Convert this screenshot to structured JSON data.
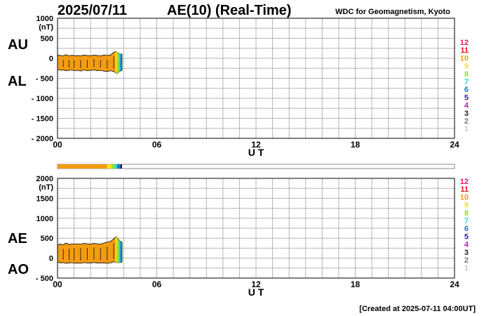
{
  "header": {
    "date": "2025/07/11",
    "title": "AE(10) (Real-Time)",
    "organization": "WDC for Geomagnetism, Kyoto"
  },
  "footer": {
    "created": "[Created at 2025-07-11 04:00UT]"
  },
  "legend": {
    "entries": [
      {
        "label": "12",
        "color": "#e8176d"
      },
      {
        "label": "11",
        "color": "#e3140e"
      },
      {
        "label": "10",
        "color": "#f39c12"
      },
      {
        "label": "9",
        "color": "#f5e51a"
      },
      {
        "label": "8",
        "color": "#98e317"
      },
      {
        "label": "7",
        "color": "#26d9e0"
      },
      {
        "label": "6",
        "color": "#1676d9"
      },
      {
        "label": "5",
        "color": "#3412c9"
      },
      {
        "label": "4",
        "color": "#c515d9"
      },
      {
        "label": "3",
        "color": "#222222"
      },
      {
        "label": "2",
        "color": "#777777"
      },
      {
        "label": "1",
        "color": "#cccccc"
      }
    ]
  },
  "chart_data": [
    {
      "type": "area",
      "name": "AU/AL panel",
      "labels": [
        "AU",
        "AL"
      ],
      "unit": "(nT)",
      "xlabel": "U T",
      "xlim": [
        0,
        24
      ],
      "xticks": [
        "00",
        "06",
        "12",
        "18",
        "24"
      ],
      "ylim": [
        -2000,
        1000
      ],
      "yticks": [
        "1000",
        "500",
        "0",
        "- 500",
        "- 1000",
        "- 1500",
        "- 2000"
      ],
      "ytick_values": [
        1000,
        500,
        0,
        -500,
        -1000,
        -1500,
        -2000
      ],
      "grid": true,
      "x": [
        0.0,
        0.2,
        0.35,
        0.5,
        0.7,
        0.9,
        1.0,
        1.2,
        1.4,
        1.6,
        1.8,
        2.0,
        2.2,
        2.4,
        2.6,
        2.8,
        3.0,
        3.2,
        3.4,
        3.5,
        3.6,
        3.7,
        3.8,
        3.9
      ],
      "series": [
        {
          "values": [
            80,
            70,
            60,
            90,
            60,
            80,
            60,
            70,
            60,
            80,
            70,
            60,
            80,
            70,
            60,
            80,
            70,
            80,
            150,
            170,
            150,
            120,
            100,
            110
          ]
        },
        {
          "values": [
            -280,
            -300,
            -290,
            -310,
            -300,
            -290,
            -310,
            -300,
            -320,
            -290,
            -310,
            -300,
            -290,
            -310,
            -300,
            -320,
            -330,
            -310,
            -330,
            -360,
            -380,
            -340,
            -320,
            -300
          ]
        }
      ]
    },
    {
      "type": "area",
      "name": "AE/AO panel",
      "labels": [
        "AE",
        "AO"
      ],
      "unit": "(nT)",
      "xlabel": "U T",
      "xlim": [
        0,
        24
      ],
      "xticks": [
        "00",
        "06",
        "12",
        "18",
        "24"
      ],
      "ylim": [
        -500,
        2000
      ],
      "yticks": [
        "2000",
        "1500",
        "1000",
        "500",
        "0",
        "- 500"
      ],
      "ytick_values": [
        2000,
        1500,
        1000,
        500,
        0,
        -500
      ],
      "grid": true,
      "x": [
        0.0,
        0.2,
        0.35,
        0.5,
        0.7,
        0.9,
        1.0,
        1.2,
        1.4,
        1.6,
        1.8,
        2.0,
        2.2,
        2.4,
        2.6,
        2.8,
        3.0,
        3.2,
        3.4,
        3.5,
        3.6,
        3.7,
        3.8,
        3.9
      ],
      "series": [
        {
          "values": [
            340,
            350,
            330,
            380,
            340,
            360,
            350,
            360,
            350,
            370,
            360,
            350,
            370,
            360,
            350,
            380,
            400,
            420,
            480,
            530,
            520,
            460,
            420,
            400
          ]
        },
        {
          "values": [
            -100,
            -120,
            -110,
            -130,
            -120,
            -110,
            -130,
            -120,
            -130,
            -110,
            -120,
            -120,
            -110,
            -120,
            -120,
            -120,
            -130,
            -120,
            -90,
            -100,
            -110,
            -110,
            -110,
            -95
          ]
        }
      ]
    }
  ],
  "status_bar": {
    "xlim": [
      0,
      24
    ],
    "segments": [
      {
        "start": 0,
        "end": 3.0,
        "color": "#f39c12"
      },
      {
        "start": 3.0,
        "end": 3.25,
        "color": "#f5e51a"
      },
      {
        "start": 3.25,
        "end": 3.45,
        "color": "#98e317"
      },
      {
        "start": 3.45,
        "end": 3.6,
        "color": "#26d9e0"
      },
      {
        "start": 3.6,
        "end": 3.8,
        "color": "#1676d9"
      },
      {
        "start": 3.8,
        "end": 3.9,
        "color": "#222222"
      }
    ]
  }
}
